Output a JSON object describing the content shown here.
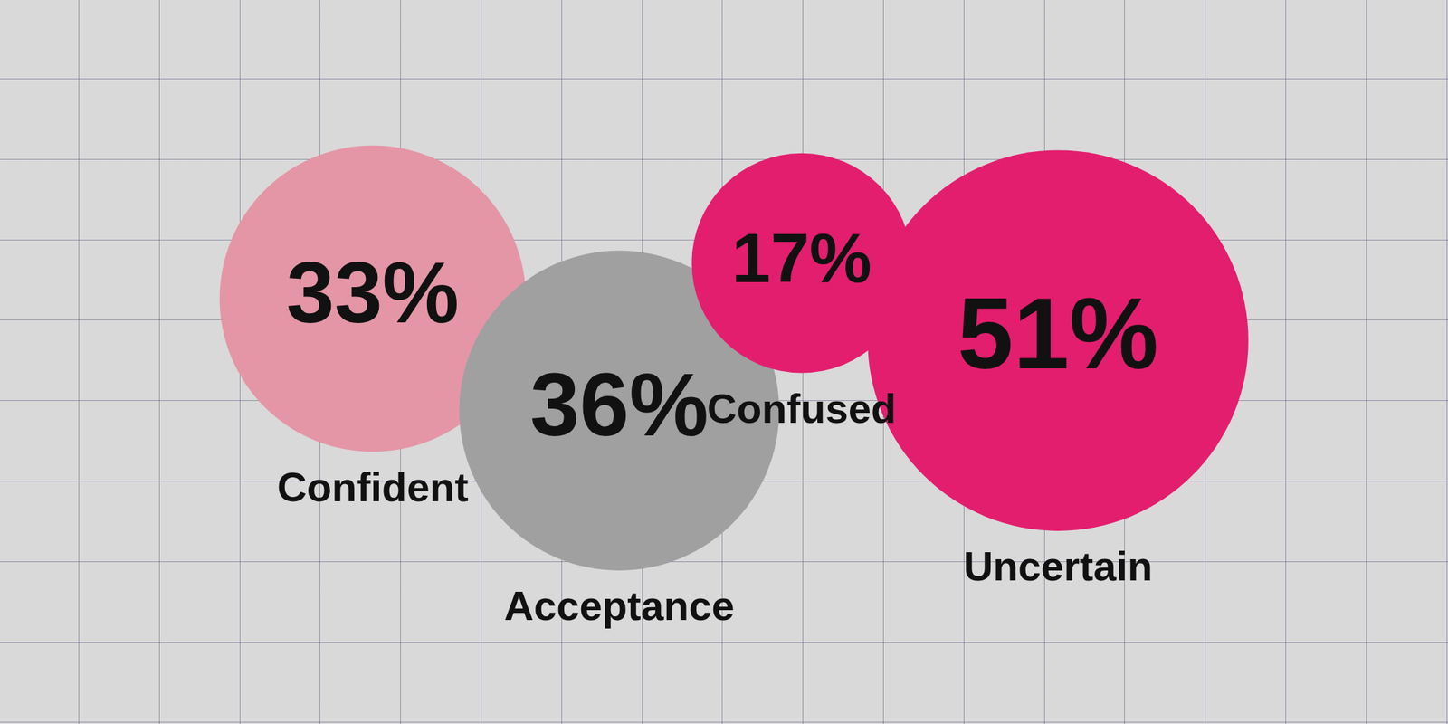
{
  "chart_data": {
    "type": "bubble",
    "categories": [
      "Confident",
      "Acceptance",
      "Confused",
      "Uncertain"
    ],
    "values": [
      33,
      36,
      17,
      51
    ],
    "value_labels": [
      "33%",
      "36%",
      "17%",
      "51%"
    ],
    "colors": [
      "#e496a6",
      "#a0a0a0",
      "#e31e6e",
      "#e31e6e"
    ],
    "data_labels": true,
    "tick_labels": false,
    "grid": true
  }
}
